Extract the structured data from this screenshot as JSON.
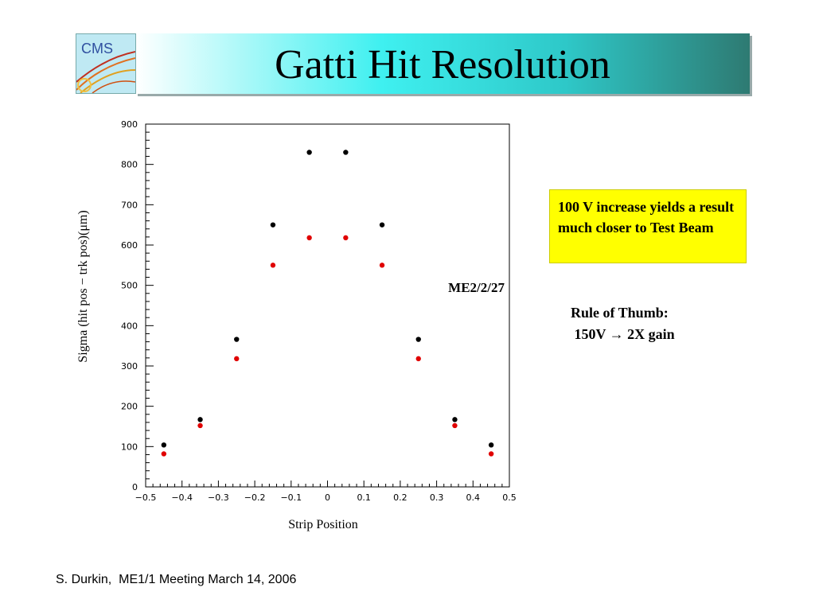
{
  "slide": {
    "title": "Gatti Hit Resolution",
    "logo_text": "CMS",
    "note": "100 V increase yields a result much closer to Test Beam",
    "rule_line1": "Rule of Thumb:",
    "rule_line2": " 150V → 2X gain",
    "footer": "S. Durkin,  ME1/1 Meeting March 14, 2006"
  },
  "colors": {
    "accent": "#2ec8c8",
    "note_bg": "#ffff00",
    "series1": "#000000",
    "series2": "#e00000"
  },
  "chart_data": {
    "type": "scatter",
    "xlabel": "Strip Position",
    "ylabel": "Sigma (hit pos − trk pos)(μm)",
    "annotation": "ME2/2/27",
    "xlim": [
      -0.5,
      0.5
    ],
    "ylim": [
      0,
      900
    ],
    "xticks": [
      "−0.5",
      "−0.4",
      "−0.3",
      "−0.2",
      "−0.1",
      "0",
      "0.1",
      "0.2",
      "0.3",
      "0.4",
      "0.5"
    ],
    "yticks": [
      "0",
      "100",
      "200",
      "300",
      "400",
      "500",
      "600",
      "700",
      "800",
      "900"
    ],
    "series": [
      {
        "x": [
          -0.45,
          -0.35,
          -0.25,
          -0.15,
          -0.05,
          0.05,
          0.15,
          0.25,
          0.35,
          0.45
        ],
        "y": [
          104,
          167,
          366,
          650,
          830,
          830,
          650,
          366,
          167,
          104
        ]
      },
      {
        "x": [
          -0.45,
          -0.35,
          -0.25,
          -0.15,
          -0.05,
          0.05,
          0.15,
          0.25,
          0.35,
          0.45
        ],
        "y": [
          82,
          152,
          318,
          550,
          618,
          618,
          550,
          318,
          152,
          82
        ]
      }
    ]
  }
}
